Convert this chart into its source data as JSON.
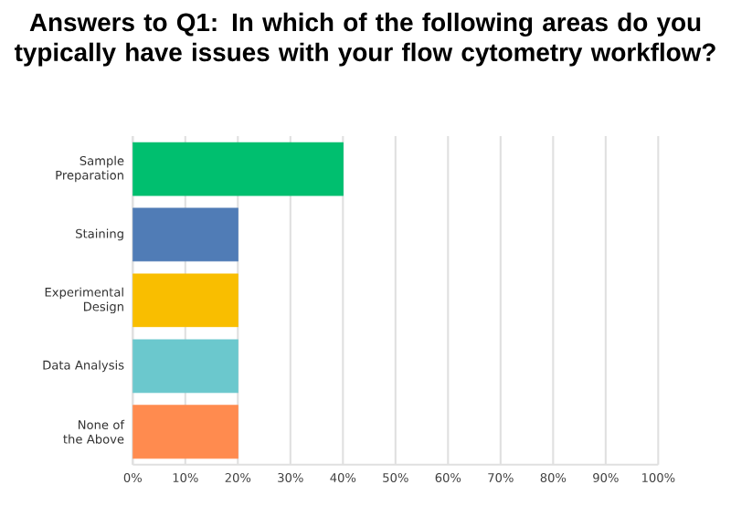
{
  "chart_data": {
    "type": "bar",
    "orientation": "horizontal",
    "title": "Answers to Q1: In which of the following areas do you typically have issues with your flow cytometry workflow?",
    "categories": [
      "Sample Preparation",
      "Staining",
      "Experimental Design",
      "Data Analysis",
      "None of the Above"
    ],
    "values": [
      40,
      20,
      20,
      20,
      20
    ],
    "colors": [
      "#00bf6f",
      "#507cb6",
      "#f9be00",
      "#6bc8cd",
      "#ff8b4f"
    ],
    "xlim": [
      0,
      100
    ],
    "xticks": [
      {
        "value": 0,
        "label": "0%"
      },
      {
        "value": 10,
        "label": "10%"
      },
      {
        "value": 20,
        "label": "20%"
      },
      {
        "value": 30,
        "label": "30%"
      },
      {
        "value": 40,
        "label": "40%"
      },
      {
        "value": 50,
        "label": "50%"
      },
      {
        "value": 60,
        "label": "60%"
      },
      {
        "value": 70,
        "label": "70%"
      },
      {
        "value": 80,
        "label": "80%"
      },
      {
        "value": 90,
        "label": "90%"
      },
      {
        "value": 100,
        "label": "100%"
      }
    ],
    "grid": "x"
  }
}
